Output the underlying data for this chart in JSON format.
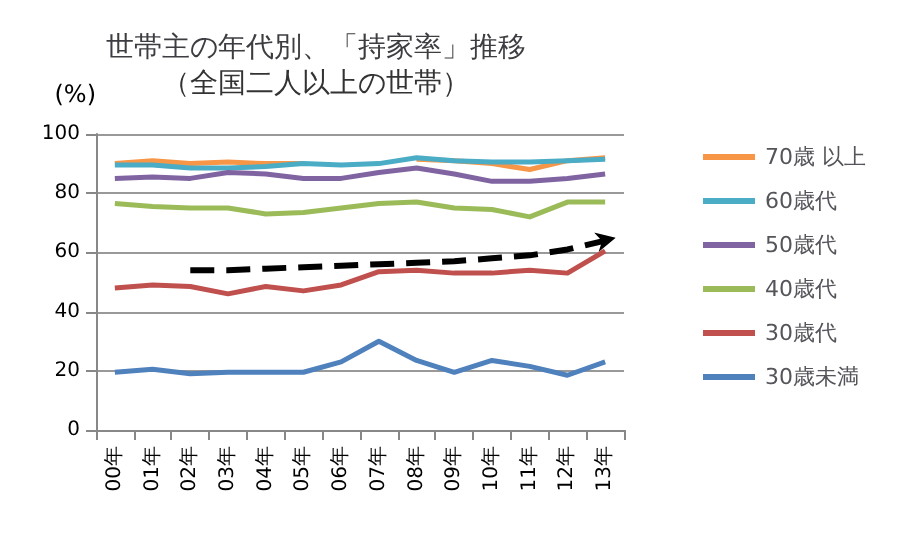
{
  "chart_data": {
    "type": "line",
    "title": "世帯主の年代別、「持家率」推移",
    "subtitle": "（全国二人以上の世帯）",
    "ylabel": "(%)",
    "categories": [
      "00年",
      "01年",
      "02年",
      "03年",
      "04年",
      "05年",
      "06年",
      "07年",
      "08年",
      "09年",
      "10年",
      "11年",
      "12年",
      "13年"
    ],
    "ylim": [
      0,
      100
    ],
    "yticks": [
      0,
      20,
      40,
      60,
      80,
      100
    ],
    "grid": "y",
    "legend": "right",
    "marker": "none",
    "series": [
      {
        "name": "70歳 以上",
        "color": "#f79646",
        "values": [
          90,
          91,
          90,
          90.5,
          90,
          90,
          null,
          null,
          91.5,
          91,
          90,
          88,
          91,
          92
        ]
      },
      {
        "name": "60歳代",
        "color": "#4bacc6",
        "values": [
          89.5,
          89.5,
          88.5,
          88.5,
          89,
          90,
          89.5,
          90,
          92,
          91,
          90.5,
          90.5,
          91,
          91.5
        ]
      },
      {
        "name": "50歳代",
        "color": "#8064a2",
        "values": [
          85,
          85.5,
          85,
          87,
          86.5,
          85,
          85,
          87,
          88.5,
          86.5,
          84,
          84,
          85,
          86.5
        ]
      },
      {
        "name": "40歳代",
        "color": "#9bbb59",
        "values": [
          76.5,
          75.5,
          75,
          75,
          73,
          73.5,
          75,
          76.5,
          77,
          75,
          74.5,
          72,
          77,
          77
        ]
      },
      {
        "name": "30歳代",
        "color": "#c0504d",
        "values": [
          48,
          49,
          48.5,
          46,
          48.5,
          47,
          49,
          53.5,
          54,
          53,
          53,
          54,
          53,
          60.5
        ]
      },
      {
        "name": "30歳未満",
        "color": "#4f81bd",
        "values": [
          19.5,
          20.5,
          19,
          19.5,
          19.5,
          19.5,
          23,
          30,
          23.5,
          19.5,
          23.5,
          21.5,
          18.5,
          23
        ]
      },
      {
        "color": "#000000",
        "line_style": "dashed",
        "values": [
          null,
          null,
          54,
          54,
          54.5,
          55,
          55.5,
          56,
          56.5,
          57,
          58,
          59,
          61,
          64
        ]
      }
    ]
  }
}
